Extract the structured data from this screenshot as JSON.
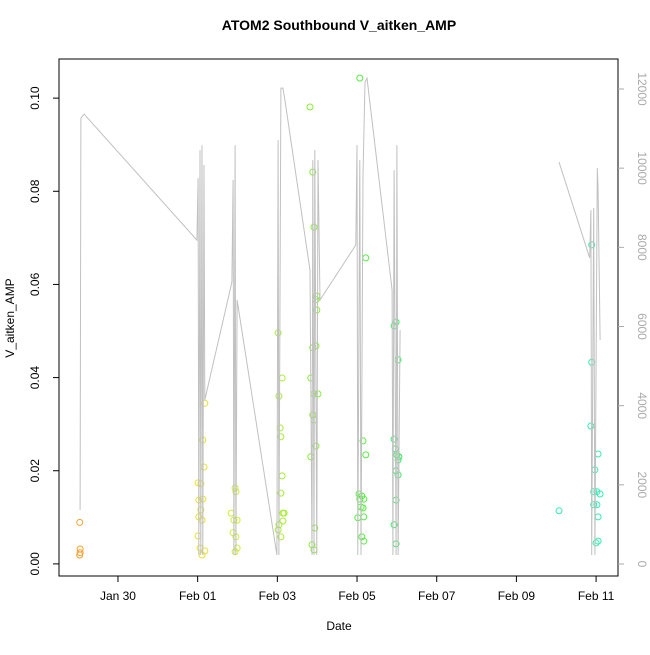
{
  "chart_data": {
    "type": "scatter",
    "title": "ATOM2 Southbound V_aitken_AMP",
    "x_label": "Date",
    "y_label": "V_aitken_AMP",
    "xlim": [
      -1.48,
      12.55
    ],
    "xticks": [
      {
        "value": 0,
        "label": "Jan 30"
      },
      {
        "value": 2,
        "label": "Feb 01"
      },
      {
        "value": 4,
        "label": "Feb 03"
      },
      {
        "value": 6,
        "label": "Feb 05"
      },
      {
        "value": 8,
        "label": "Feb 07"
      },
      {
        "value": 10,
        "label": "Feb 09"
      },
      {
        "value": 12,
        "label": "Feb 11"
      }
    ],
    "ylim": [
      -0.0026,
      0.1084
    ],
    "yticks": [
      {
        "value": 0,
        "label": "0.00"
      },
      {
        "value": 0.02,
        "label": "0.02"
      },
      {
        "value": 0.04,
        "label": "0.04"
      },
      {
        "value": 0.06,
        "label": "0.06"
      },
      {
        "value": 0.08,
        "label": "0.08"
      },
      {
        "value": 0.1,
        "label": "0.10"
      }
    ],
    "y2lim": [
      -303,
      12758
    ],
    "y2ticks": [
      0,
      2000,
      4000,
      6000,
      8000,
      10000,
      12000
    ],
    "series": [
      {
        "color": "#f5a030",
        "x": [
          -0.96,
          -0.95,
          -0.95,
          -0.96
        ],
        "values": [
          0.0089,
          0.0032,
          0.0024,
          0.0019
        ]
      },
      {
        "color": "#e8e030",
        "x": [
          2.01,
          2.08,
          2.03,
          2.08,
          2.03,
          2.11,
          2.18,
          2.13,
          2.16,
          2.13,
          2.01,
          2.06,
          2.11,
          2.18
        ],
        "values": [
          0.0174,
          0.0172,
          0.0137,
          0.0116,
          0.0101,
          0.0094,
          0.0345,
          0.0266,
          0.0208,
          0.0139,
          0.006,
          0.0034,
          0.0019,
          0.0028
        ]
      },
      {
        "color": "#cdee30",
        "x": [
          2.94,
          2.96,
          2.84,
          2.91,
          2.99,
          2.89,
          2.96,
          2.99,
          2.94
        ],
        "values": [
          0.0163,
          0.0155,
          0.0109,
          0.0094,
          0.0094,
          0.0067,
          0.0058,
          0.0034,
          0.0026
        ]
      },
      {
        "color": "#a8ee30",
        "x": [
          4.02,
          4.04,
          4.12,
          4.07,
          4.09,
          4.12,
          4.09,
          4.14,
          4.17,
          4.14,
          4.04,
          4.09,
          4.02
        ],
        "values": [
          0.0496,
          0.036,
          0.0399,
          0.0292,
          0.0273,
          0.0189,
          0.0152,
          0.0109,
          0.0109,
          0.0092,
          0.0084,
          0.0058,
          0.0073
        ]
      },
      {
        "color": "#86ee30",
        "x": [
          4.82,
          4.89,
          4.92,
          4.99,
          4.97,
          4.99,
          4.97,
          4.89,
          4.84,
          4.92,
          5.02,
          4.89,
          4.92,
          4.97,
          4.84,
          4.94,
          4.87,
          4.92
        ],
        "values": [
          0.0981,
          0.0841,
          0.0723,
          0.0575,
          0.0567,
          0.0545,
          0.0468,
          0.0464,
          0.0399,
          0.0365,
          0.0365,
          0.032,
          0.0309,
          0.0253,
          0.023,
          0.0077,
          0.0041,
          0.003
        ]
      },
      {
        "color": "#55ee40",
        "x": [
          6.07,
          6.22,
          6.15,
          6.22,
          6.05,
          6.12,
          6.07,
          6.17,
          6.1,
          6.15,
          6.02,
          6.17,
          6.12,
          6.17
        ],
        "values": [
          0.1043,
          0.0657,
          0.0264,
          0.0234,
          0.015,
          0.0146,
          0.0139,
          0.0139,
          0.0122,
          0.012,
          0.0099,
          0.0101,
          0.0058,
          0.0049
        ]
      },
      {
        "color": "#35ee60",
        "x": [
          6.93,
          6.98,
          7.03,
          6.93,
          6.96,
          7.0,
          7.03,
          7.05,
          6.98,
          7.03,
          6.98,
          6.93,
          6.98
        ],
        "values": [
          0.0511,
          0.0519,
          0.0438,
          0.0268,
          0.0247,
          0.0234,
          0.0223,
          0.023,
          0.02,
          0.0191,
          0.0137,
          0.0084,
          0.0043
        ]
      },
      {
        "color": "#30eeb0",
        "x": [
          11.07,
          11.89,
          11.89,
          11.87,
          11.97,
          12.05,
          11.94,
          12.02,
          11.94,
          12.02,
          12.05,
          12.05,
          12.0,
          12.1
        ],
        "values": [
          0.0114,
          0.0685,
          0.0433,
          0.0296,
          0.0202,
          0.0236,
          0.0155,
          0.0155,
          0.0127,
          0.0127,
          0.0101,
          0.0049,
          0.0045,
          0.015
        ]
      },
      {
        "type": "line",
        "axis": "y2",
        "color": "#c0c0c0",
        "x": [
          -0.95,
          -0.93,
          -0.85,
          1.98,
          2.01,
          2.03,
          2.06,
          2.08,
          2.11,
          2.13,
          2.16,
          2.18,
          2.86,
          2.89,
          2.91,
          2.94,
          2.96,
          2.99,
          3.99,
          4.02,
          4.04,
          4.09,
          4.14,
          4.19,
          4.82,
          4.87,
          4.89,
          4.92,
          4.94,
          4.99,
          5.02,
          5.07,
          5.97,
          6.0,
          6.02,
          6.07,
          6.1,
          6.15,
          6.2,
          6.25,
          6.88,
          6.9,
          6.93,
          6.98,
          7.0,
          7.03,
          7.08,
          null,
          11.07,
          11.84,
          11.87,
          11.89,
          11.94,
          11.97,
          12.03,
          12.05,
          12.1
        ],
        "values": [
          1364,
          11266,
          11367,
          8184,
          9750,
          227,
          10458,
          227,
          10584,
          227,
          10079,
          4143,
          7123,
          9700,
          227,
          10584,
          227,
          6669,
          227,
          10710,
          227,
          12024,
          12024,
          11721,
          7426,
          227,
          10205,
          227,
          10458,
          227,
          10205,
          6669,
          8058,
          10584,
          227,
          10205,
          227,
          9826,
          12175,
          12276,
          6921,
          227,
          9952,
          227,
          10584,
          227,
          5911,
          null,
          10155,
          7730,
          8942,
          227,
          8993,
          227,
          10003,
          9447,
          5658
        ]
      }
    ]
  }
}
